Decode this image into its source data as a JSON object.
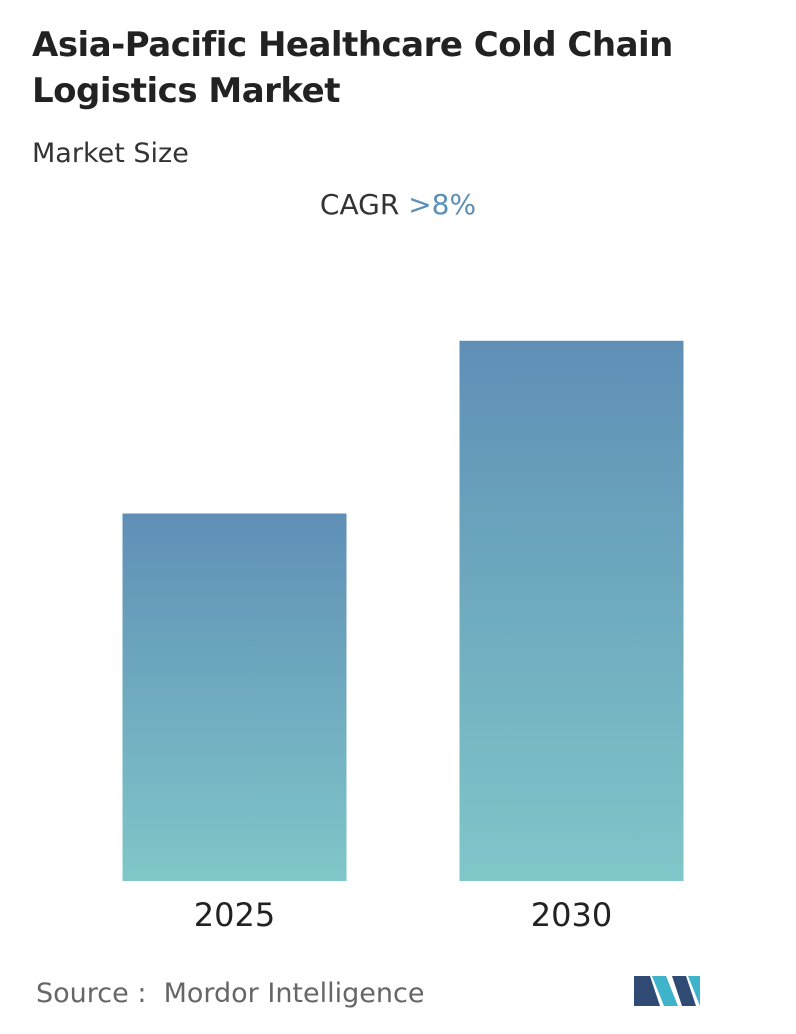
{
  "chart_data": {
    "type": "bar",
    "title": "Asia-Pacific Healthcare Cold Chain Logistics Market",
    "subtitle": "Market Size",
    "cagr_label": "CAGR",
    "cagr_value": ">8%",
    "categories": [
      "2025",
      "2030"
    ],
    "values": [
      1.0,
      1.47
    ],
    "ylim": [
      0,
      1.6
    ],
    "color_top": "#5f8fb6",
    "color_bottom": "#80c7c9",
    "source": "Source :  Mordor Intelligence"
  }
}
